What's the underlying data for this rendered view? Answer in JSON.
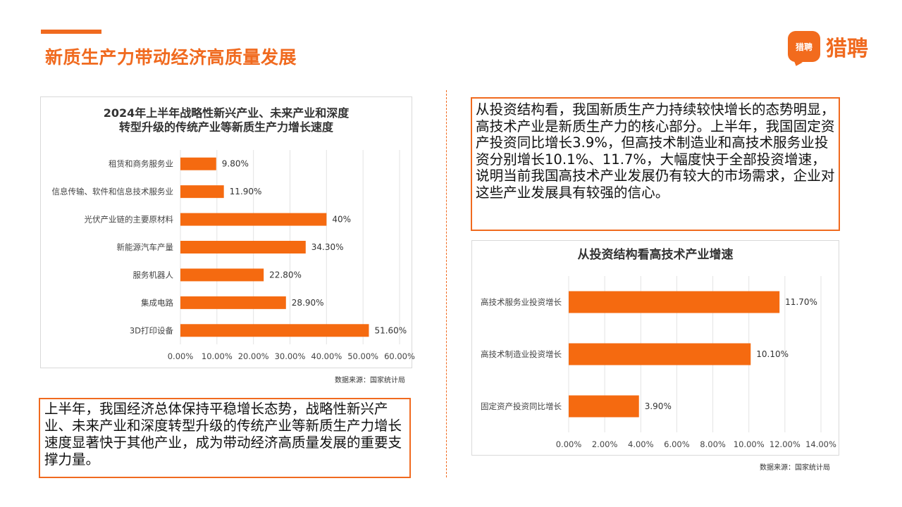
{
  "page": {
    "title": "新质生产力带动经济高质量发展",
    "logo_mark_text": "猎聘",
    "logo_text": "猎聘",
    "accent_color": "#f06a1f"
  },
  "left_chart": {
    "title_line1": "2024年上半年战略性新兴产业、未来产业和深度",
    "title_line2": "转型升级的传统产业等新质生产力增长速度",
    "source": "数据来源：国家统计局"
  },
  "right_chart": {
    "title": "从投资结构看高技术产业增速",
    "source": "数据来源：国家统计局"
  },
  "left_text": "上半年，我国经济总体保持平稳增长态势，战略性新兴产业、未来产业和深度转型升级的传统产业等新质生产力增长速度显著快于其他产业，成为带动经济高质量发展的重要支撑力量。",
  "right_text": "从投资结构看，我国新质生产力持续较快增长的态势明显，高技术产业是新质生产力的核心部分。上半年，我国固定资产投资同比增长3.9%，但高技术制造业和高技术服务业投资分别增长10.1%、11.7%，大幅度快于全部投资增速，说明当前我国高技术产业发展仍有较大的市场需求，企业对这些产业发展具有较强的信心。",
  "chart_data": [
    {
      "type": "bar",
      "orientation": "horizontal",
      "title": "2024年上半年战略性新兴产业、未来产业和深度转型升级的传统产业等新质生产力增长速度",
      "categories": [
        "租赁和商务服务业",
        "信息传输、软件和信息技术服务业",
        "光伏产业链的主要原材料",
        "新能源汽车产量",
        "服务机器人",
        "集成电路",
        "3D打印设备"
      ],
      "values": [
        9.8,
        11.9,
        40,
        34.3,
        22.8,
        28.9,
        51.6
      ],
      "data_labels": [
        "9.80%",
        "11.90%",
        "40%",
        "34.30%",
        "22.80%",
        "28.90%",
        "51.60%"
      ],
      "xlim": [
        0,
        60
      ],
      "xticks": [
        "0.00%",
        "10.00%",
        "20.00%",
        "30.00%",
        "40.00%",
        "50.00%",
        "60.00%"
      ],
      "grid": true,
      "color": "#f56a10"
    },
    {
      "type": "bar",
      "orientation": "horizontal",
      "title": "从投资结构看高技术产业增速",
      "categories": [
        "高技术服务业投资增长",
        "高技术制造业投资增长",
        "固定资产投资同比增长"
      ],
      "values": [
        11.7,
        10.1,
        3.9
      ],
      "data_labels": [
        "11.70%",
        "10.10%",
        "3.90%"
      ],
      "xlim": [
        0,
        14
      ],
      "xticks": [
        "0.00%",
        "2.00%",
        "4.00%",
        "6.00%",
        "8.00%",
        "10.00%",
        "12.00%",
        "14.00%"
      ],
      "grid": true,
      "color": "#f56a10"
    }
  ]
}
